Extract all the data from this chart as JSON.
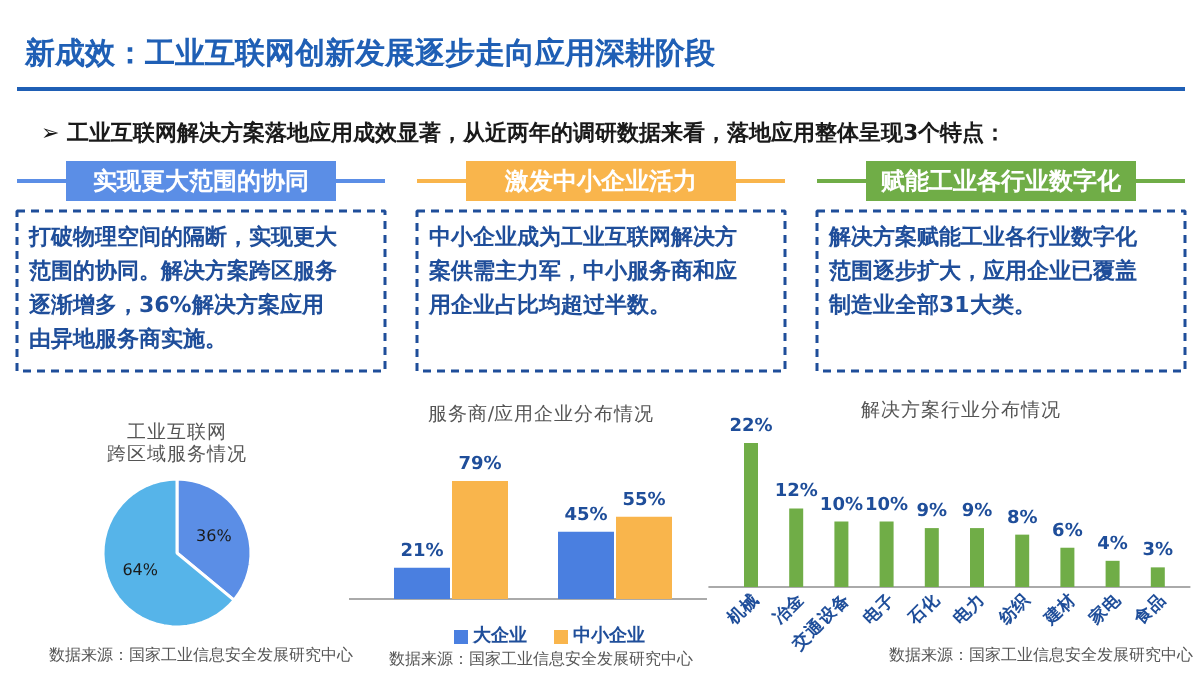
{
  "chart_data": [
    {
      "type": "other",
      "title": "新成效：工业互联网创新发展逐步走向应用深耕阶段",
      "subtitle": "➢ 工业互联网解决方案落地应用成效显著，从近两年的调研数据来看，落地应用整体呈现3个特点：",
      "annotations": [
        "实现更大范围的协同",
        "激发中小企业活力",
        "赋能工业各行业数字化",
        "打破物理空间的隔断，实现更大范围的协同。解决方案跨区服务逐渐增多，36%解决方案应用由异地服务商实施。",
        "中小企业成为工业互联网解决方案供需主力军，中小服务商和应用企业占比均超过半数。",
        "解决方案赋能工业各行业数字化范围逐步扩大，应用企业已覆盖制造业全部31大类。"
      ]
    },
    {
      "type": "pie",
      "title": "工业互联网跨区域服务情况",
      "categories": [
        null,
        null
      ],
      "values": [
        36,
        64
      ],
      "colors": [
        "#5b8ee6",
        "#56b4e9"
      ],
      "value_labels": [
        "36%",
        "64%"
      ],
      "annotations": [
        "数据来源：国家工业信息安全发展研究中心"
      ]
    },
    {
      "type": "bar",
      "title": "服务商/应用企业分布情况",
      "categories": [
        null,
        null
      ],
      "tick_labels": false,
      "legend": "bottom",
      "series": [
        {
          "name": "大企业",
          "color": "#4a7fe0",
          "values": [
            21,
            45
          ],
          "value_labels": [
            "21%",
            "45%"
          ]
        },
        {
          "name": "中小企业",
          "color": "#f9b54c",
          "values": [
            79,
            55
          ],
          "value_labels": [
            "79%",
            "55%"
          ]
        }
      ],
      "annotations": [
        "数据来源：国家工业信息安全发展研究中心"
      ]
    },
    {
      "type": "bar",
      "title": "解决方案行业分布情况",
      "categories": [
        "机械",
        "冶金",
        "交通设备",
        "电子",
        "石化",
        "电力",
        "纺织",
        "建材",
        "家电",
        "食品"
      ],
      "tick_labels": "x",
      "values": [
        22,
        12,
        10,
        10,
        9,
        9,
        8,
        6,
        4,
        3
      ],
      "color": "#70ad47",
      "value_labels": [
        "22%",
        "12%",
        "10%",
        "10%",
        "9%",
        "9%",
        "8%",
        "6%",
        "4%",
        "3%"
      ],
      "annotations": [
        "数据来源：国家工业信息安全发展研究中心"
      ]
    }
  ]
}
